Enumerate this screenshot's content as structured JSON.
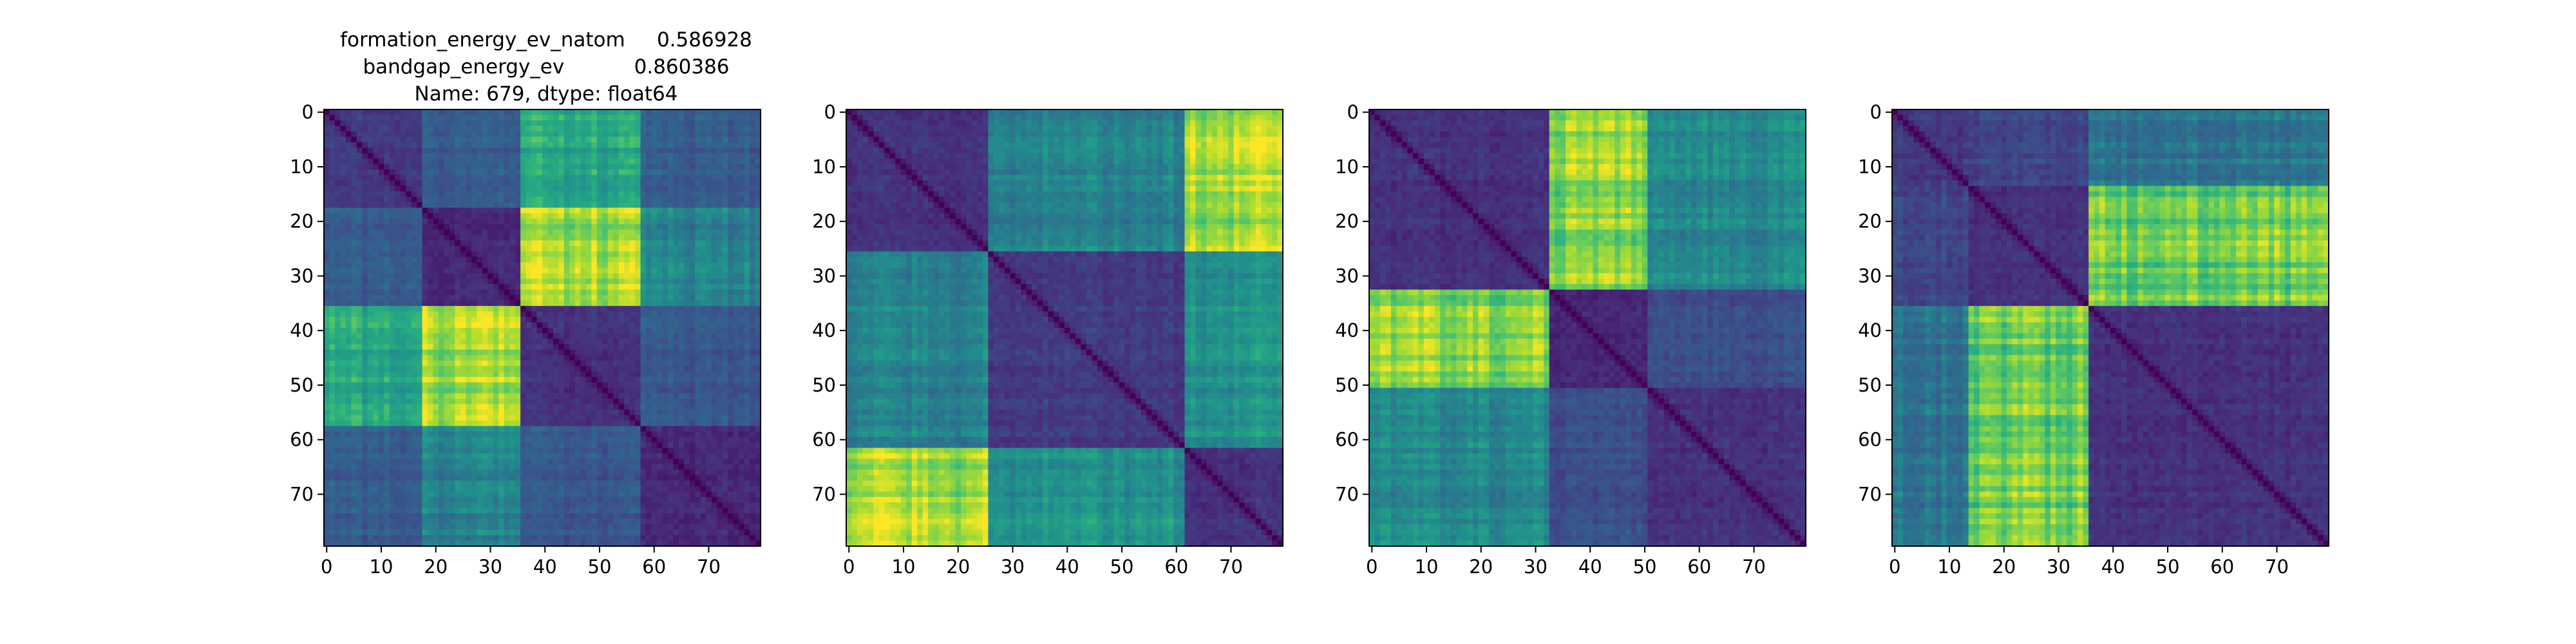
{
  "figure": {
    "title_lines": [
      "formation_energy_ev_natom     0.586928",
      "bandgap_energy_ev           0.860386",
      "Name: 679, dtype: float64"
    ]
  },
  "chart_data": [
    {
      "type": "heatmap",
      "title": "",
      "size": 80,
      "colormap": "viridis",
      "xlim": [
        0,
        79
      ],
      "ylim": [
        79,
        0
      ],
      "x_ticks": [
        0,
        10,
        20,
        30,
        40,
        50,
        60,
        70
      ],
      "y_ticks": [
        0,
        10,
        20,
        30,
        40,
        50,
        60,
        70
      ],
      "blocks": [
        [
          0,
          17
        ],
        [
          18,
          35
        ],
        [
          36,
          57
        ],
        [
          58,
          79
        ]
      ],
      "block_levels": [
        [
          0.18,
          0.3,
          0.62,
          0.3
        ],
        [
          0.3,
          0.12,
          0.88,
          0.45
        ],
        [
          0.62,
          0.88,
          0.15,
          0.28
        ],
        [
          0.3,
          0.45,
          0.28,
          0.12
        ]
      ]
    },
    {
      "type": "heatmap",
      "title": "",
      "size": 80,
      "colormap": "viridis",
      "xlim": [
        0,
        79
      ],
      "ylim": [
        79,
        0
      ],
      "x_ticks": [
        0,
        10,
        20,
        30,
        40,
        50,
        60,
        70
      ],
      "y_ticks": [
        0,
        10,
        20,
        30,
        40,
        50,
        60,
        70
      ],
      "blocks": [
        [
          0,
          25
        ],
        [
          26,
          61
        ],
        [
          62,
          79
        ]
      ],
      "block_levels": [
        [
          0.15,
          0.45,
          0.9
        ],
        [
          0.45,
          0.18,
          0.52
        ],
        [
          0.9,
          0.52,
          0.15
        ]
      ]
    },
    {
      "type": "heatmap",
      "title": "",
      "size": 80,
      "colormap": "viridis",
      "xlim": [
        0,
        79
      ],
      "ylim": [
        79,
        0
      ],
      "x_ticks": [
        0,
        10,
        20,
        30,
        40,
        50,
        60,
        70
      ],
      "y_ticks": [
        0,
        10,
        20,
        30,
        40,
        50,
        60,
        70
      ],
      "blocks": [
        [
          0,
          32
        ],
        [
          33,
          50
        ],
        [
          51,
          79
        ]
      ],
      "block_levels": [
        [
          0.15,
          0.85,
          0.48
        ],
        [
          0.85,
          0.12,
          0.25
        ],
        [
          0.48,
          0.25,
          0.15
        ]
      ]
    },
    {
      "type": "heatmap",
      "title": "",
      "size": 80,
      "colormap": "viridis",
      "xlim": [
        0,
        79
      ],
      "ylim": [
        79,
        0
      ],
      "x_ticks": [
        0,
        10,
        20,
        30,
        40,
        50,
        60,
        70
      ],
      "y_ticks": [
        0,
        10,
        20,
        30,
        40,
        50,
        60,
        70
      ],
      "blocks": [
        [
          0,
          13
        ],
        [
          14,
          35
        ],
        [
          36,
          79
        ]
      ],
      "block_levels": [
        [
          0.18,
          0.22,
          0.4
        ],
        [
          0.22,
          0.15,
          0.8
        ],
        [
          0.4,
          0.8,
          0.15
        ]
      ]
    }
  ]
}
